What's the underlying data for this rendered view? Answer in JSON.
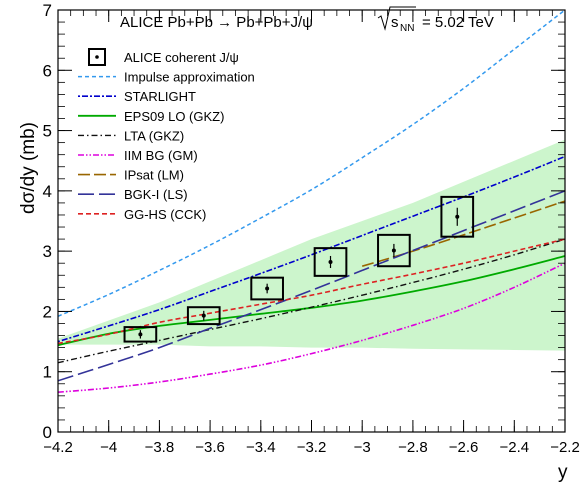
{
  "chart_data": {
    "type": "line",
    "title_left": "ALICE Pb+Pb → Pb+Pb+J/ψ",
    "title_sqrt": "s",
    "title_sub": "NN",
    "title_right": "= 5.02 TeV",
    "xlabel": "y",
    "ylabel": "dσ/dy (mb)",
    "xlim": [
      -4.2,
      -2.2
    ],
    "ylim": [
      0,
      7
    ],
    "xticks": [
      -4.2,
      -4,
      -3.8,
      -3.6,
      -3.4,
      -3.2,
      -3,
      -2.8,
      -2.6,
      -2.4,
      -2.2
    ],
    "xtick_labels": [
      "−4.2",
      "−4",
      "−3.8",
      "−3.6",
      "−3.4",
      "−3.2",
      "−3",
      "−2.8",
      "−2.6",
      "−2.4",
      "−2.2"
    ],
    "yticks": [
      0,
      1,
      2,
      3,
      4,
      5,
      6,
      7
    ],
    "ytick_labels": [
      "0",
      "1",
      "2",
      "3",
      "4",
      "5",
      "6",
      "7"
    ],
    "legend_position": "top-left",
    "data": {
      "name": "ALICE coherent J/ψ",
      "points": [
        {
          "x": -3.875,
          "y": 1.62,
          "xerr": 0.125,
          "sys": 0.12,
          "stat": 0.07
        },
        {
          "x": -3.625,
          "y": 1.93,
          "xerr": 0.125,
          "sys": 0.14,
          "stat": 0.08
        },
        {
          "x": -3.375,
          "y": 2.38,
          "xerr": 0.125,
          "sys": 0.18,
          "stat": 0.08
        },
        {
          "x": -3.125,
          "y": 2.82,
          "xerr": 0.125,
          "sys": 0.23,
          "stat": 0.1
        },
        {
          "x": -2.875,
          "y": 3.01,
          "xerr": 0.125,
          "sys": 0.26,
          "stat": 0.11
        },
        {
          "x": -2.625,
          "y": 3.57,
          "xerr": 0.125,
          "sys": 0.33,
          "stat": 0.15
        }
      ]
    },
    "band": {
      "series": "EPS09 LO (GKZ)",
      "color": "#ccf5cc",
      "x": [
        -4.2,
        -4.0,
        -3.8,
        -3.6,
        -3.4,
        -3.2,
        -3.0,
        -2.8,
        -2.6,
        -2.4,
        -2.2
      ],
      "upper": [
        1.55,
        1.85,
        2.15,
        2.5,
        2.85,
        3.2,
        3.5,
        3.8,
        4.15,
        4.5,
        4.85
      ],
      "lower": [
        1.45,
        1.45,
        1.45,
        1.42,
        1.42,
        1.4,
        1.4,
        1.38,
        1.37,
        1.36,
        1.35
      ]
    },
    "series": [
      {
        "name": "Impulse approximation",
        "color": "#3399ee",
        "dash": "4,3",
        "width": 1.5,
        "x": [
          -4.2,
          -4.0,
          -3.8,
          -3.6,
          -3.4,
          -3.2,
          -3.0,
          -2.8,
          -2.6,
          -2.4,
          -2.2
        ],
        "y": [
          1.92,
          2.28,
          2.68,
          3.1,
          3.55,
          4.02,
          4.55,
          5.1,
          5.7,
          6.35,
          7.0
        ]
      },
      {
        "name": "STARLIGHT",
        "color": "#0000cc",
        "dash": "2,2,6,2",
        "width": 1.6,
        "x": [
          -4.2,
          -4.0,
          -3.8,
          -3.6,
          -3.4,
          -3.2,
          -3.0,
          -2.8,
          -2.6,
          -2.4,
          -2.2
        ],
        "y": [
          1.5,
          1.76,
          2.03,
          2.33,
          2.63,
          2.94,
          3.26,
          3.58,
          3.9,
          4.23,
          4.57
        ]
      },
      {
        "name": "EPS09 LO (GKZ)",
        "color": "#00aa00",
        "dash": "",
        "width": 1.8,
        "x": [
          -4.2,
          -4.0,
          -3.8,
          -3.6,
          -3.4,
          -3.2,
          -3.0,
          -2.8,
          -2.6,
          -2.4,
          -2.2
        ],
        "y": [
          1.44,
          1.63,
          1.76,
          1.86,
          1.96,
          2.06,
          2.18,
          2.33,
          2.5,
          2.7,
          2.92
        ]
      },
      {
        "name": "LTA (GKZ)",
        "color": "#111111",
        "dash": "6,3,1.5,3",
        "width": 1.4,
        "x": [
          -4.2,
          -4.0,
          -3.8,
          -3.6,
          -3.4,
          -3.2,
          -3.0,
          -2.8,
          -2.6,
          -2.4,
          -2.2
        ],
        "y": [
          1.15,
          1.34,
          1.52,
          1.7,
          1.88,
          2.07,
          2.27,
          2.48,
          2.7,
          2.94,
          3.2
        ]
      },
      {
        "name": "IIM BG (GM)",
        "color": "#dd00dd",
        "dash": "6,2,1.5,2,1.5,2",
        "width": 1.6,
        "x": [
          -4.2,
          -4.0,
          -3.8,
          -3.6,
          -3.4,
          -3.2,
          -3.0,
          -2.8,
          -2.6,
          -2.4,
          -2.2
        ],
        "y": [
          0.66,
          0.73,
          0.83,
          0.96,
          1.11,
          1.3,
          1.52,
          1.77,
          2.05,
          2.4,
          2.8
        ]
      },
      {
        "name": "IPsat (LM)",
        "color": "#996600",
        "dash": "12,4",
        "width": 1.6,
        "x": [
          -3.0,
          -2.8,
          -2.6,
          -2.4,
          -2.2
        ],
        "y": [
          2.75,
          3.0,
          3.27,
          3.55,
          3.83
        ]
      },
      {
        "name": "BGK-I (LS)",
        "color": "#333399",
        "dash": "16,5",
        "width": 1.6,
        "x": [
          -4.2,
          -4.0,
          -3.8,
          -3.6,
          -3.4,
          -3.2,
          -3.0,
          -2.8,
          -2.6,
          -2.4,
          -2.2
        ],
        "y": [
          0.85,
          1.12,
          1.4,
          1.72,
          2.03,
          2.35,
          2.68,
          3.01,
          3.34,
          3.67,
          4.0
        ]
      },
      {
        "name": "GG-HS (CCK)",
        "color": "#dd2222",
        "dash": "5,3",
        "width": 1.6,
        "x": [
          -4.2,
          -4.0,
          -3.8,
          -3.6,
          -3.4,
          -3.2,
          -3.0,
          -2.8,
          -2.6,
          -2.4,
          -2.2
        ],
        "y": [
          1.47,
          1.62,
          1.82,
          1.97,
          2.12,
          2.27,
          2.45,
          2.62,
          2.8,
          3.0,
          3.2
        ]
      }
    ]
  }
}
